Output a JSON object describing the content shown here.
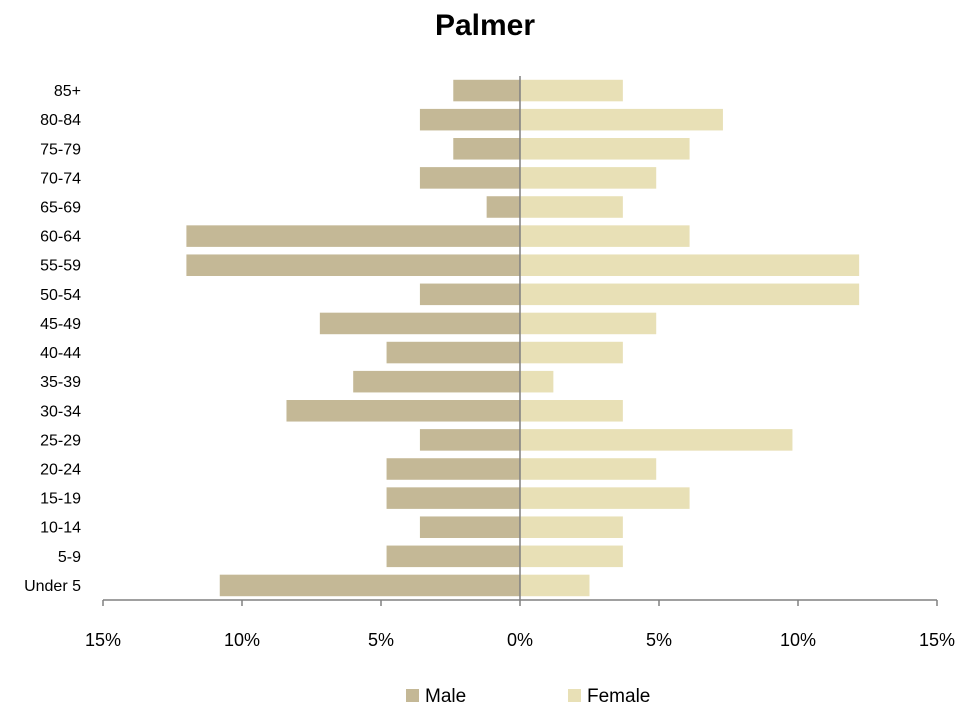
{
  "chart_data": {
    "type": "bar",
    "orientation": "horizontal",
    "title": "Palmer",
    "categories": [
      "85+",
      "80-84",
      "75-79",
      "70-74",
      "65-69",
      "60-64",
      "55-59",
      "50-54",
      "45-49",
      "40-44",
      "35-39",
      "30-34",
      "25-29",
      "20-24",
      "15-19",
      "10-14",
      "5-9",
      "Under 5"
    ],
    "series": [
      {
        "name": "Male",
        "color": "#c4b896",
        "values": [
          -2.4,
          -3.6,
          -2.4,
          -3.6,
          -1.2,
          -12.0,
          -12.0,
          -3.6,
          -7.2,
          -4.8,
          -6.0,
          -8.4,
          -3.6,
          -4.8,
          -4.8,
          -3.6,
          -4.8,
          -10.8
        ]
      },
      {
        "name": "Female",
        "color": "#e8e0b6",
        "values": [
          3.7,
          7.3,
          6.1,
          4.9,
          3.7,
          6.1,
          12.2,
          12.2,
          4.9,
          3.7,
          1.2,
          3.7,
          9.8,
          4.9,
          6.1,
          3.7,
          3.7,
          2.5
        ]
      }
    ],
    "xlim": [
      -15,
      15
    ],
    "xticks": [
      -15,
      -10,
      -5,
      0,
      5,
      10,
      15
    ],
    "xtick_labels": [
      "15%",
      "10%",
      "5%",
      "0%",
      "5%",
      "10%",
      "15%"
    ],
    "xlabel": "",
    "ylabel": "",
    "grid": false,
    "legend": "bottom"
  }
}
